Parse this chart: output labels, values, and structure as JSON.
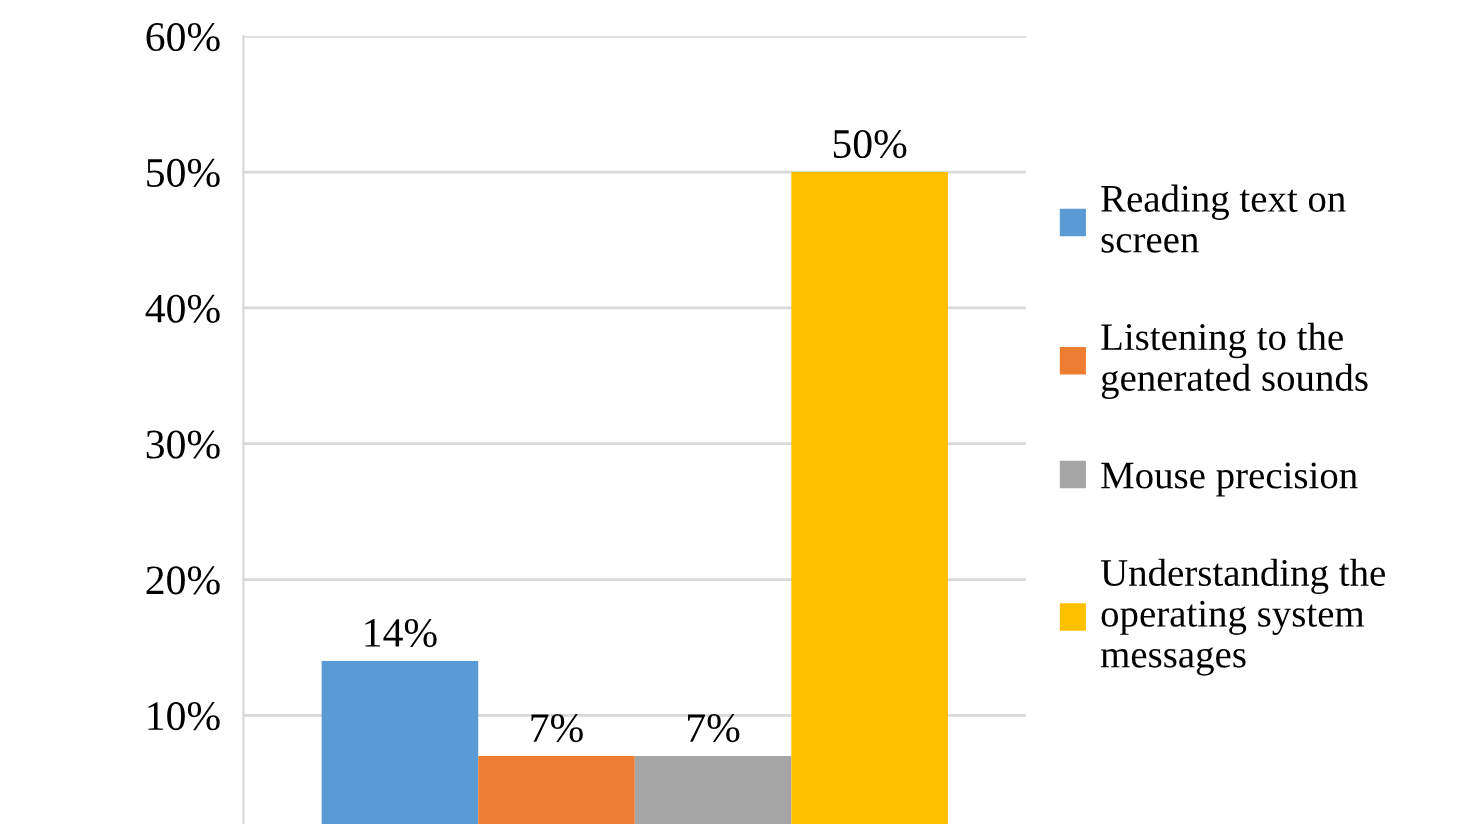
{
  "chart_data": {
    "type": "bar",
    "categories": [
      null
    ],
    "series": [
      {
        "name": "Reading text on\nscreen",
        "color": "#5b9bd5",
        "values": [
          14
        ],
        "value_labels": [
          "14%"
        ]
      },
      {
        "name": "Listening to the\ngenerated sounds",
        "color": "#ed7d31",
        "values": [
          7
        ],
        "value_labels": [
          "7%"
        ]
      },
      {
        "name": "Mouse precision",
        "color": "#a5a5a5",
        "values": [
          7
        ],
        "value_labels": [
          "7%"
        ]
      },
      {
        "name": "Understanding the\noperating system\nmessages",
        "color": "#ffc000",
        "values": [
          50
        ],
        "value_labels": [
          "50%"
        ]
      }
    ],
    "ylim": [
      2,
      60
    ],
    "yticks": [
      {
        "value": 10,
        "label": "10%"
      },
      {
        "value": 20,
        "label": "20%"
      },
      {
        "value": 30,
        "label": "30%"
      },
      {
        "value": 40,
        "label": "40%"
      },
      {
        "value": 50,
        "label": "50%"
      },
      {
        "value": 60,
        "label": "60%"
      }
    ],
    "grid": "y",
    "legend": "right"
  }
}
